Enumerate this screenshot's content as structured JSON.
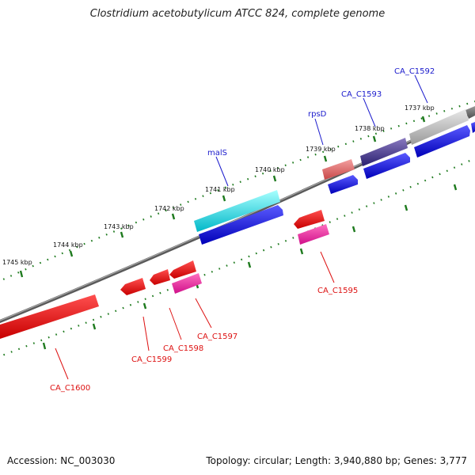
{
  "title": "Clostridium acetobutylicum ATCC 824, complete genome",
  "accession": "Accession: NC_003030",
  "summary": "Topology: circular; Length: 3,940,880 bp; Genes: 3,777",
  "colors": {
    "backbone": "#808080",
    "tick": "#1e7a1e",
    "forward_label": "#1a1acc",
    "reverse_label": "#dd1111"
  },
  "ticks": [
    {
      "label": "1737 kbp"
    },
    {
      "label": "1738 kbp"
    },
    {
      "label": "1739 kbp"
    },
    {
      "label": "1740 kbp"
    },
    {
      "label": "1741 kbp"
    },
    {
      "label": "1742 kbp"
    },
    {
      "label": "1743 kbp"
    },
    {
      "label": "1744 kbp"
    },
    {
      "label": "1745 kbp"
    }
  ],
  "genes": [
    {
      "label": "CA_C1592",
      "strand": "forward"
    },
    {
      "label": "CA_C1593",
      "strand": "forward"
    },
    {
      "label": "rpsD",
      "strand": "forward"
    },
    {
      "label": "malS",
      "strand": "forward"
    },
    {
      "label": "CA_C1595",
      "strand": "reverse"
    },
    {
      "label": "CA_C1597",
      "strand": "reverse"
    },
    {
      "label": "CA_C1598",
      "strand": "reverse"
    },
    {
      "label": "CA_C1599",
      "strand": "reverse"
    },
    {
      "label": "CA_C1600",
      "strand": "reverse"
    }
  ]
}
